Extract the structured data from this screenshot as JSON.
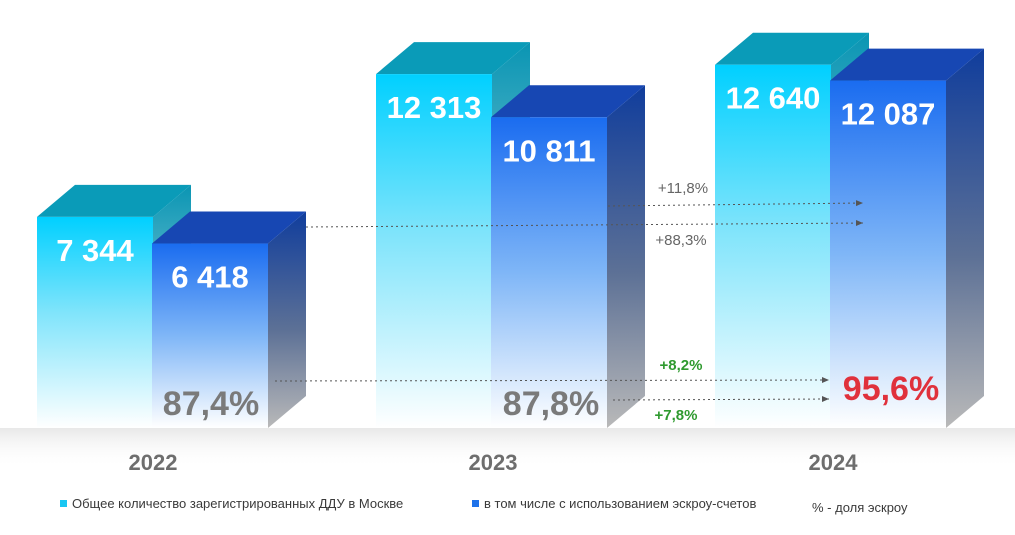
{
  "chart_data": {
    "type": "bar",
    "categories": [
      "2022",
      "2023",
      "2024"
    ],
    "series": [
      {
        "name": "Общее количество зарегистрированных ДДУ в Москве",
        "values": [
          7344,
          12313,
          12640
        ],
        "labels": [
          "7 344",
          "12 313",
          "12 640"
        ],
        "color": "#19c6f2"
      },
      {
        "name": "в том числе с использованием эскроу-счетов",
        "values": [
          6418,
          10811,
          12087
        ],
        "labels": [
          "6 418",
          "10 811",
          "12 087"
        ],
        "color": "#1e72ea"
      }
    ],
    "escrow_share": {
      "name": "% - доля эскроу",
      "values": [
        87.4,
        87.8,
        95.6
      ],
      "labels": [
        "87,4%",
        "87,8%",
        "95,6%"
      ],
      "colors": [
        "#7a7a7a",
        "#7a7a7a",
        "#e0313c"
      ]
    },
    "annotations": [
      {
        "text": "+11,8%",
        "color": "#666666"
      },
      {
        "text": "+88,3%",
        "color": "#666666"
      },
      {
        "text": "+8,2%",
        "color": "#2f9a2f"
      },
      {
        "text": "+7,8%",
        "color": "#2f9a2f"
      }
    ],
    "ylim": [
      0,
      13500
    ],
    "legend_position": "bottom"
  }
}
